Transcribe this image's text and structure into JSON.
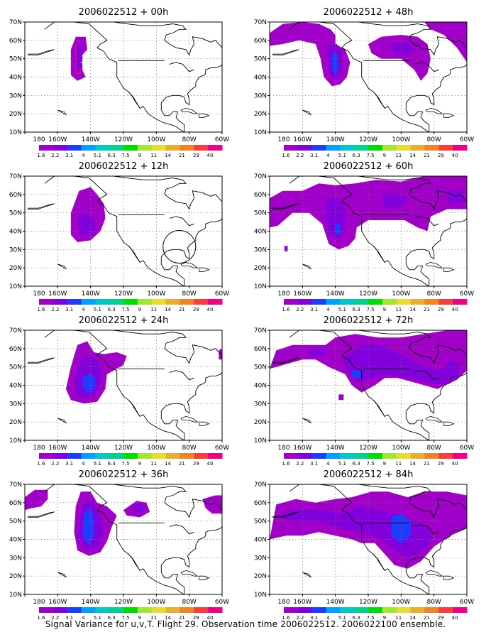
{
  "figure": {
    "caption": "Signal Variance for u,v,T. Flight 29. Observation time 2006022512. 2006022100 ensemble.",
    "lon_labels": [
      "180",
      "160W",
      "140W",
      "120W",
      "100W",
      "80W",
      "60W"
    ],
    "lat_labels": [
      "10N",
      "20N",
      "30N",
      "40N",
      "50N",
      "60N",
      "70N"
    ],
    "colorbar": {
      "labels": [
        "1.6",
        "2.2",
        "3.1",
        "4",
        "5.1",
        "6.3",
        "7.5",
        "9",
        "11",
        "14",
        "21",
        "29",
        "40"
      ],
      "colors": [
        "#a000c8",
        "#8200dc",
        "#1e3cff",
        "#00a0ff",
        "#00c8c8",
        "#00d28c",
        "#00dc00",
        "#a0e632",
        "#e6dc32",
        "#e6af2d",
        "#f08228",
        "#fa3c3c",
        "#f00082"
      ]
    },
    "shading": {
      "level1": "#a000c8",
      "level2": "#8200dc",
      "level3": "#1e3cff",
      "level4": "#00a0ff",
      "hot": "#f00082"
    }
  },
  "panels": [
    {
      "title": "2006022512 + 00h",
      "lead_hours": 0
    },
    {
      "title": "2006022512 + 48h",
      "lead_hours": 48
    },
    {
      "title": "2006022512 + 12h",
      "lead_hours": 12
    },
    {
      "title": "2006022512 + 60h",
      "lead_hours": 60
    },
    {
      "title": "2006022512 + 24h",
      "lead_hours": 24
    },
    {
      "title": "2006022512 + 72h",
      "lead_hours": 72
    },
    {
      "title": "2006022512 + 36h",
      "lead_hours": 36
    },
    {
      "title": "2006022512 + 84h",
      "lead_hours": 84
    }
  ]
}
